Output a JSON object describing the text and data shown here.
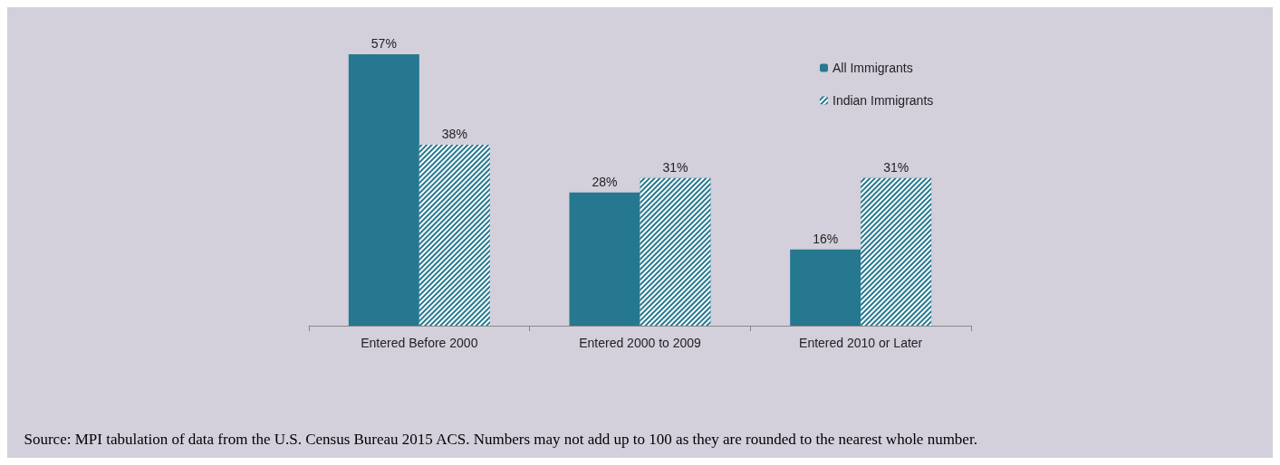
{
  "chart_data": {
    "type": "bar",
    "categories": [
      "Entered Before 2000",
      "Entered 2000 to 2009",
      "Entered 2010 or Later"
    ],
    "series": [
      {
        "name": "All Immigrants",
        "color": "#25788f",
        "values": [
          57,
          28,
          16
        ],
        "value_labels": [
          "57%",
          "28%",
          "16%"
        ]
      },
      {
        "name": "Indian Immigrants",
        "color": "#25788f",
        "values": [
          38,
          31,
          31
        ],
        "value_labels": [
          "38%",
          "31%",
          "31%"
        ]
      }
    ],
    "legend": "top right",
    "grid": false,
    "annotations": [
      "Source: MPI tabulation of data from the U.S. Census Bureau 2015 ACS. Numbers may not add up to 100 as they are rounded to the nearest whole number."
    ]
  }
}
